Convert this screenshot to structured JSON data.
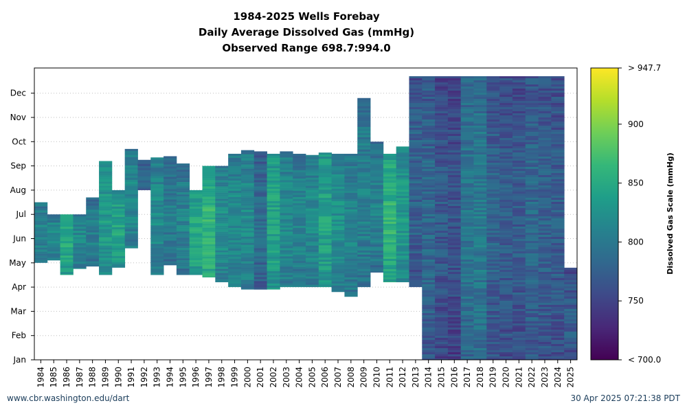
{
  "chart_data": {
    "type": "heatmap",
    "title_lines": [
      "1984-2025 Wells Forebay",
      "Daily Average Dissolved Gas (mmHg)",
      "Observed Range 698.7:994.0"
    ],
    "x_categories": [
      "1984",
      "1985",
      "1986",
      "1987",
      "1988",
      "1989",
      "1990",
      "1991",
      "1992",
      "1993",
      "1994",
      "1995",
      "1996",
      "1997",
      "1998",
      "1999",
      "2000",
      "2001",
      "2002",
      "2003",
      "2004",
      "2005",
      "2006",
      "2007",
      "2008",
      "2009",
      "2010",
      "2011",
      "2012",
      "2013",
      "2014",
      "2015",
      "2016",
      "2017",
      "2018",
      "2019",
      "2020",
      "2021",
      "2022",
      "2023",
      "2024",
      "2025"
    ],
    "y_months": [
      "Jan",
      "Feb",
      "Mar",
      "Apr",
      "May",
      "Jun",
      "Jul",
      "Aug",
      "Sep",
      "Oct",
      "Nov",
      "Dec"
    ],
    "grid": "dotted horizontal",
    "colorbar": {
      "title": "Dissolved Gas Scale (mmHg)",
      "tick_labels": [
        "< 700.0",
        "750",
        "800",
        "850",
        "900",
        "> 947.7"
      ],
      "tick_values": [
        700,
        750,
        800,
        850,
        900,
        947.7
      ],
      "min": 700,
      "max": 947.7,
      "colors": [
        "#440154",
        "#482878",
        "#3e4a89",
        "#31688e",
        "#26828e",
        "#1f9e89",
        "#35b779",
        "#6ece58",
        "#b5de2b",
        "#fde725"
      ]
    },
    "series": [
      {
        "year": "1984",
        "start_month": 5.0,
        "end_month": 7.5,
        "mean": 795
      },
      {
        "year": "1985",
        "start_month": 5.1,
        "end_month": 7.0,
        "mean": 800
      },
      {
        "year": "1986",
        "start_month": 4.5,
        "end_month": 7.0,
        "mean": 830
      },
      {
        "year": "1987",
        "start_month": 4.75,
        "end_month": 7.0,
        "mean": 800
      },
      {
        "year": "1988",
        "start_month": 4.85,
        "end_month": 7.7,
        "mean": 790
      },
      {
        "year": "1989",
        "start_month": 4.5,
        "end_month": 9.2,
        "mean": 815
      },
      {
        "year": "1990",
        "start_month": 4.8,
        "end_month": 8.0,
        "mean": 825
      },
      {
        "year": "1991",
        "start_month": 5.6,
        "end_month": 9.7,
        "mean": 800
      },
      {
        "year": "1992",
        "start_month": 8.0,
        "end_month": 9.25,
        "mean": 775
      },
      {
        "year": "1993",
        "start_month": 4.5,
        "end_month": 9.35,
        "mean": 800
      },
      {
        "year": "1994",
        "start_month": 4.9,
        "end_month": 9.4,
        "mean": 785
      },
      {
        "year": "1995",
        "start_month": 4.5,
        "end_month": 9.1,
        "mean": 790
      },
      {
        "year": "1996",
        "start_month": 4.5,
        "end_month": 8.0,
        "mean": 830
      },
      {
        "year": "1997",
        "start_month": 4.4,
        "end_month": 9.0,
        "mean": 845
      },
      {
        "year": "1998",
        "start_month": 4.2,
        "end_month": 9.0,
        "mean": 805
      },
      {
        "year": "1999",
        "start_month": 4.0,
        "end_month": 9.5,
        "mean": 800
      },
      {
        "year": "2000",
        "start_month": 3.9,
        "end_month": 9.65,
        "mean": 800
      },
      {
        "year": "2001",
        "start_month": 3.9,
        "end_month": 9.6,
        "mean": 770
      },
      {
        "year": "2002",
        "start_month": 3.9,
        "end_month": 9.5,
        "mean": 825
      },
      {
        "year": "2003",
        "start_month": 4.0,
        "end_month": 9.6,
        "mean": 800
      },
      {
        "year": "2004",
        "start_month": 4.0,
        "end_month": 9.5,
        "mean": 795
      },
      {
        "year": "2005",
        "start_month": 4.0,
        "end_month": 9.45,
        "mean": 800
      },
      {
        "year": "2006",
        "start_month": 4.0,
        "end_month": 9.55,
        "mean": 825
      },
      {
        "year": "2007",
        "start_month": 3.8,
        "end_month": 9.5,
        "mean": 805
      },
      {
        "year": "2008",
        "start_month": 3.6,
        "end_month": 9.5,
        "mean": 795
      },
      {
        "year": "2009",
        "start_month": 4.0,
        "end_month": 11.8,
        "mean": 790
      },
      {
        "year": "2010",
        "start_month": 4.6,
        "end_month": 10.0,
        "mean": 790
      },
      {
        "year": "2011",
        "start_month": 4.2,
        "end_month": 9.5,
        "mean": 840
      },
      {
        "year": "2012",
        "start_month": 4.2,
        "end_month": 9.8,
        "mean": 815
      },
      {
        "year": "2013",
        "start_month": 4.0,
        "end_month": 12.7,
        "mean": 760
      },
      {
        "year": "2014",
        "start_month": 1.0,
        "end_month": 12.7,
        "mean": 765
      },
      {
        "year": "2015",
        "start_month": 1.0,
        "end_month": 12.7,
        "mean": 750
      },
      {
        "year": "2016",
        "start_month": 1.0,
        "end_month": 12.7,
        "mean": 745
      },
      {
        "year": "2017",
        "start_month": 1.0,
        "end_month": 12.7,
        "mean": 780
      },
      {
        "year": "2018",
        "start_month": 1.0,
        "end_month": 12.7,
        "mean": 785
      },
      {
        "year": "2019",
        "start_month": 1.0,
        "end_month": 12.7,
        "mean": 760
      },
      {
        "year": "2020",
        "start_month": 1.0,
        "end_month": 12.7,
        "mean": 755
      },
      {
        "year": "2021",
        "start_month": 1.0,
        "end_month": 12.7,
        "mean": 755
      },
      {
        "year": "2022",
        "start_month": 1.0,
        "end_month": 12.7,
        "mean": 765
      },
      {
        "year": "2023",
        "start_month": 1.0,
        "end_month": 12.7,
        "mean": 760
      },
      {
        "year": "2024",
        "start_month": 1.0,
        "end_month": 12.7,
        "mean": 755
      },
      {
        "year": "2025",
        "start_month": 1.0,
        "end_month": 4.8,
        "mean": 755
      }
    ]
  },
  "footer": {
    "left": "www.cbr.washington.edu/dart",
    "right": "30 Apr 2025 07:21:38 PDT"
  }
}
